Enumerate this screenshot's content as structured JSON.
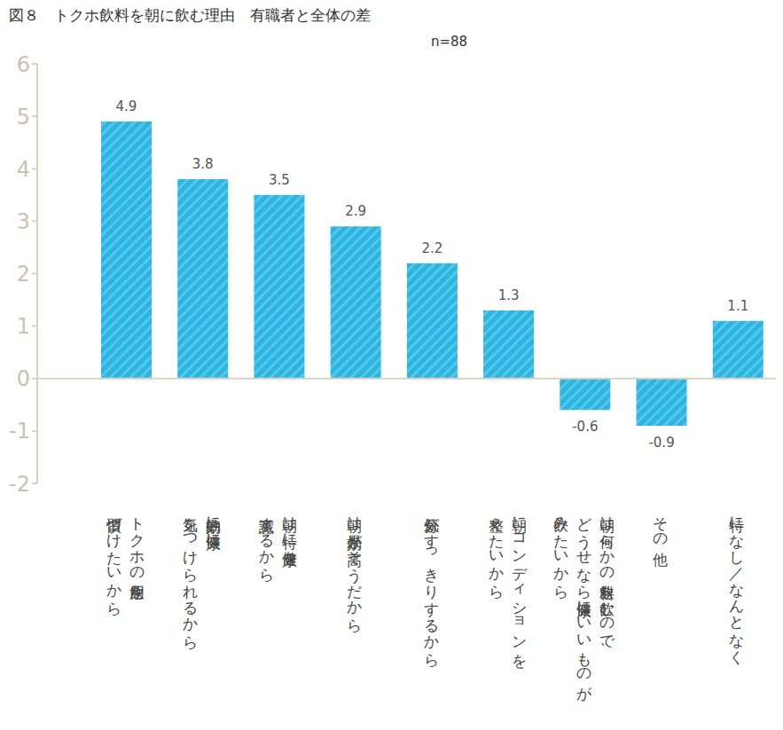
{
  "chart_data": {
    "type": "bar",
    "title": "図８　トクホ飲料を朝に飲む理由　有職者と全体の差",
    "subtitle": "n=88",
    "categories": [
      "トクホの飲用を\n習慣づけたいから",
      "効率的に健康に\n気をつけられるから",
      "朝は特に健康を\n意識するから",
      "朝は効果が高そうだから",
      "気分がすっきりするから",
      "朝にコンディションを\n整えたいから",
      "朝は何らかの飲料を飲むので、\nどうせなら健康にいいものが\n飲みたいから",
      "その他",
      "特になし／なんとなく"
    ],
    "values": [
      4.9,
      3.8,
      3.5,
      2.9,
      2.2,
      1.3,
      -0.6,
      -0.9,
      1.1
    ],
    "color": "#29b6e3",
    "ylim": [
      -2,
      6
    ],
    "yticks": [
      -2,
      -1,
      0,
      1,
      2,
      3,
      4,
      5,
      6
    ],
    "grid": false,
    "data_labels": true
  }
}
